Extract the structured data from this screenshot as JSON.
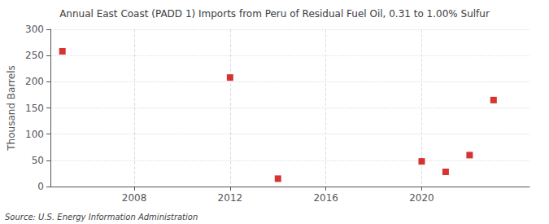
{
  "chart_data": {
    "type": "scatter",
    "title": "Annual East Coast (PADD 1) Imports from Peru of Residual Fuel Oil, 0.31 to 1.00% Sulfur",
    "ylabel": "Thousand Barrels",
    "source": "Source: U.S. Energy Information Administration",
    "x": [
      2005,
      2012,
      2014,
      2020,
      2021,
      2022,
      2023
    ],
    "values": [
      258,
      208,
      15,
      48,
      28,
      60,
      165
    ],
    "color": "#cc0000",
    "marker": "square",
    "xlim": [
      2004.5,
      2024.5
    ],
    "xticks": [
      2008,
      2012,
      2016,
      2020
    ],
    "ylim": [
      0,
      300
    ],
    "yticks": [
      0,
      50,
      100,
      150,
      200,
      250,
      300
    ],
    "grid": true
  }
}
